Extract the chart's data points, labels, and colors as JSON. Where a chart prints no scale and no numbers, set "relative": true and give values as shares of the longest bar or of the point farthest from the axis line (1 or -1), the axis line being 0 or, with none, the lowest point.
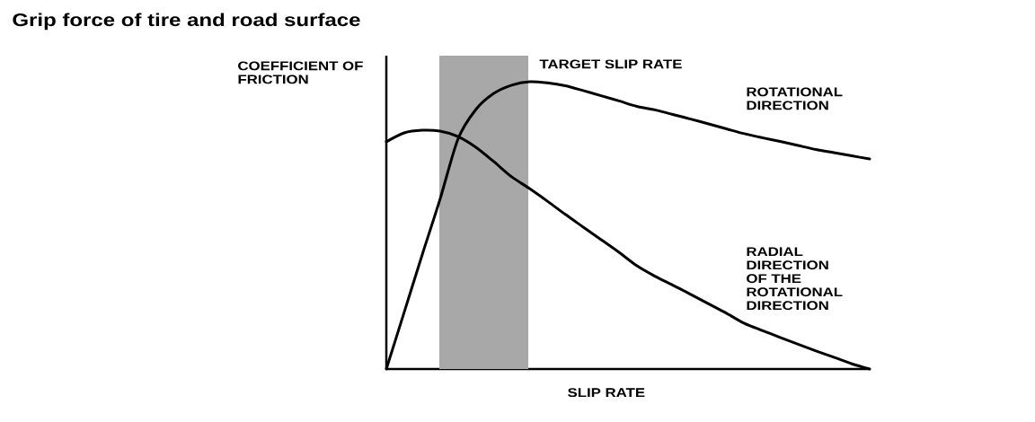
{
  "chart_data": {
    "type": "line",
    "title": "Grip force of tire and road surface",
    "xlabel": "SLIP RATE",
    "ylabel": "COEFFICIENT OF FRICTION",
    "relative": true,
    "categories": [
      null,
      null,
      null,
      null,
      null,
      null,
      null,
      null,
      null,
      null,
      null,
      null,
      null,
      null,
      null,
      null,
      null,
      null,
      null,
      null,
      null,
      null,
      null,
      null,
      null,
      null,
      null,
      null
    ],
    "series": [
      {
        "name": "ROTATIONAL DIRECTION",
        "color": "#000000",
        "values": [
          0,
          0.198,
          0.397,
          0.591,
          0.8,
          0.903,
          0.959,
          0.988,
          1.0,
          0.996,
          0.986,
          0.969,
          0.951,
          0.933,
          0.914,
          0.902,
          0.886,
          0.87,
          0.853,
          0.836,
          0.819,
          0.805,
          0.792,
          0.778,
          0.764,
          0.753,
          0.742,
          0.731
        ]
      },
      {
        "name": "RADIAL DIRECTION OF THE ROTATIONAL DIRECTION",
        "color": "#000000",
        "values": [
          0.791,
          0.822,
          0.831,
          0.828,
          0.809,
          0.772,
          0.722,
          0.669,
          0.628,
          0.584,
          0.538,
          0.494,
          0.45,
          0.406,
          0.359,
          0.323,
          0.292,
          0.26,
          0.227,
          0.194,
          0.159,
          0.134,
          0.11,
          0.086,
          0.063,
          0.041,
          0.018,
          0
        ]
      }
    ],
    "annotations": [
      "TARGET SLIP RATE"
    ]
  }
}
